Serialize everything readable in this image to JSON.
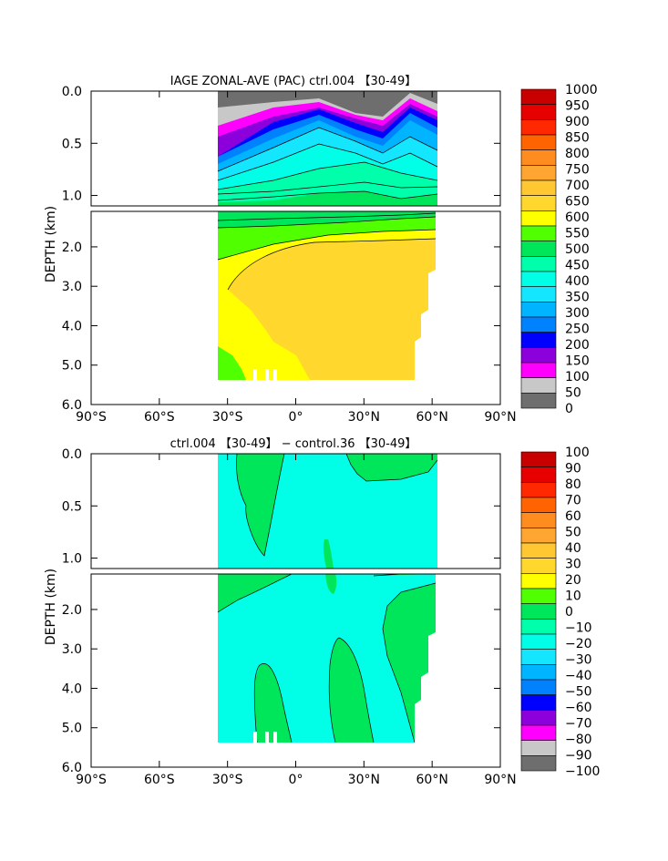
{
  "chart_data": [
    {
      "type": "heatmap",
      "title": "IAGE ZONAL-AVE (PAC) ctrl.004 【30-49】",
      "ylabel": "DEPTH (km)",
      "xlabel": "",
      "x_ticks": [
        "90°S",
        "60°S",
        "30°S",
        "0°",
        "30°N",
        "60°N",
        "90°N"
      ],
      "y_ticks_upper": [
        "0.0",
        "0.5",
        "1.0"
      ],
      "y_ticks_lower": [
        "2.0",
        "3.0",
        "4.0",
        "5.0",
        "6.0"
      ],
      "xlim": [
        -90,
        90
      ],
      "ylim": [
        0,
        6
      ],
      "data_extent_lat": [
        -34,
        62
      ],
      "colorbar_labels": [
        "1000",
        "950",
        "900",
        "850",
        "800",
        "750",
        "700",
        "650",
        "600",
        "550",
        "500",
        "450",
        "400",
        "350",
        "300",
        "250",
        "200",
        "150",
        "100",
        "50",
        "0"
      ],
      "colorbar_colors": [
        "#c80000",
        "#e60000",
        "#ff2800",
        "#ff6400",
        "#ff8c1e",
        "#ffa532",
        "#ffc832",
        "#ffd72d",
        "#ffff00",
        "#50ff00",
        "#00e65a",
        "#00ffaa",
        "#00ffe6",
        "#14e6ff",
        "#00b4ff",
        "#0082ff",
        "#0000ff",
        "#8c00dc",
        "#ff00ff",
        "#c8c8c8",
        "#6e6e6e"
      ]
    },
    {
      "type": "heatmap",
      "title": "ctrl.004 【30-49】 − control.36 【30-49】",
      "ylabel": "DEPTH (km)",
      "xlabel": "",
      "x_ticks": [
        "90°S",
        "60°S",
        "30°S",
        "0°",
        "30°N",
        "60°N",
        "90°N"
      ],
      "y_ticks_upper": [
        "0.0",
        "0.5",
        "1.0"
      ],
      "y_ticks_lower": [
        "2.0",
        "3.0",
        "4.0",
        "5.0",
        "6.0"
      ],
      "xlim": [
        -90,
        90
      ],
      "ylim": [
        0,
        6
      ],
      "data_extent_lat": [
        -34,
        62
      ],
      "colorbar_labels": [
        "100",
        "90",
        "80",
        "70",
        "60",
        "50",
        "40",
        "30",
        "20",
        "10",
        "0",
        "−10",
        "−20",
        "−30",
        "−40",
        "−50",
        "−60",
        "−70",
        "−80",
        "−90",
        "−100"
      ],
      "colorbar_colors": [
        "#c80000",
        "#e60000",
        "#ff2800",
        "#ff6400",
        "#ff8c1e",
        "#ffa532",
        "#ffc832",
        "#ffd72d",
        "#ffff00",
        "#50ff00",
        "#00e65a",
        "#00ffaa",
        "#00ffe6",
        "#14e6ff",
        "#00b4ff",
        "#0082ff",
        "#0000ff",
        "#8c00dc",
        "#ff00ff",
        "#c8c8c8",
        "#6e6e6e"
      ]
    }
  ]
}
